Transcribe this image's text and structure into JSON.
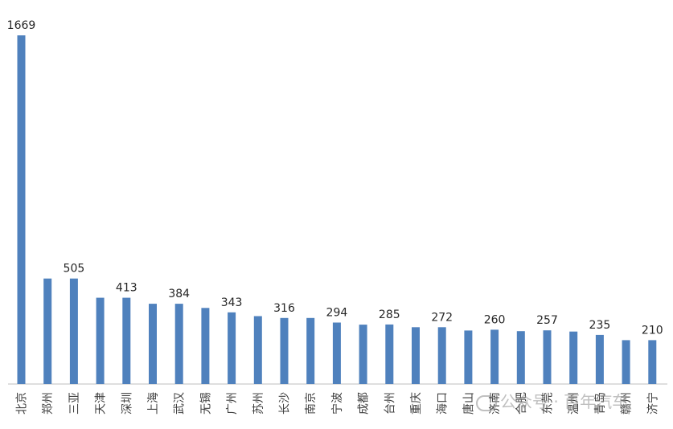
{
  "chart_data": {
    "type": "bar",
    "categories": [
      "北京",
      "郑州",
      "三亚",
      "天津",
      "深圳",
      "上海",
      "武汉",
      "无锡",
      "广州",
      "苏州",
      "长沙",
      "南京",
      "宁波",
      "成都",
      "台州",
      "重庆",
      "海口",
      "唐山",
      "济南",
      "合肥",
      "东莞",
      "温州",
      "青岛",
      "赣州",
      "济宁"
    ],
    "values": [
      1669,
      505,
      505,
      413,
      413,
      384,
      384,
      364,
      343,
      325,
      316,
      316,
      294,
      284,
      285,
      272,
      272,
      256,
      260,
      253,
      257,
      251,
      235,
      210,
      210
    ],
    "labels": [
      "1669",
      "",
      "505",
      "",
      "413",
      "",
      "384",
      "",
      "343",
      "",
      "316",
      "",
      "294",
      "",
      "285",
      "",
      "272",
      "",
      "260",
      "",
      "257",
      "",
      "235",
      "",
      "210"
    ],
    "title": "",
    "xlabel": "",
    "ylabel": "",
    "ylim": [
      0,
      1669
    ],
    "bar_color": "#4f81bd",
    "grid": false,
    "legend": "none"
  },
  "watermark": {
    "icon": "wechat-official-account-icon",
    "text": "公众号 · 百年汽车"
  }
}
